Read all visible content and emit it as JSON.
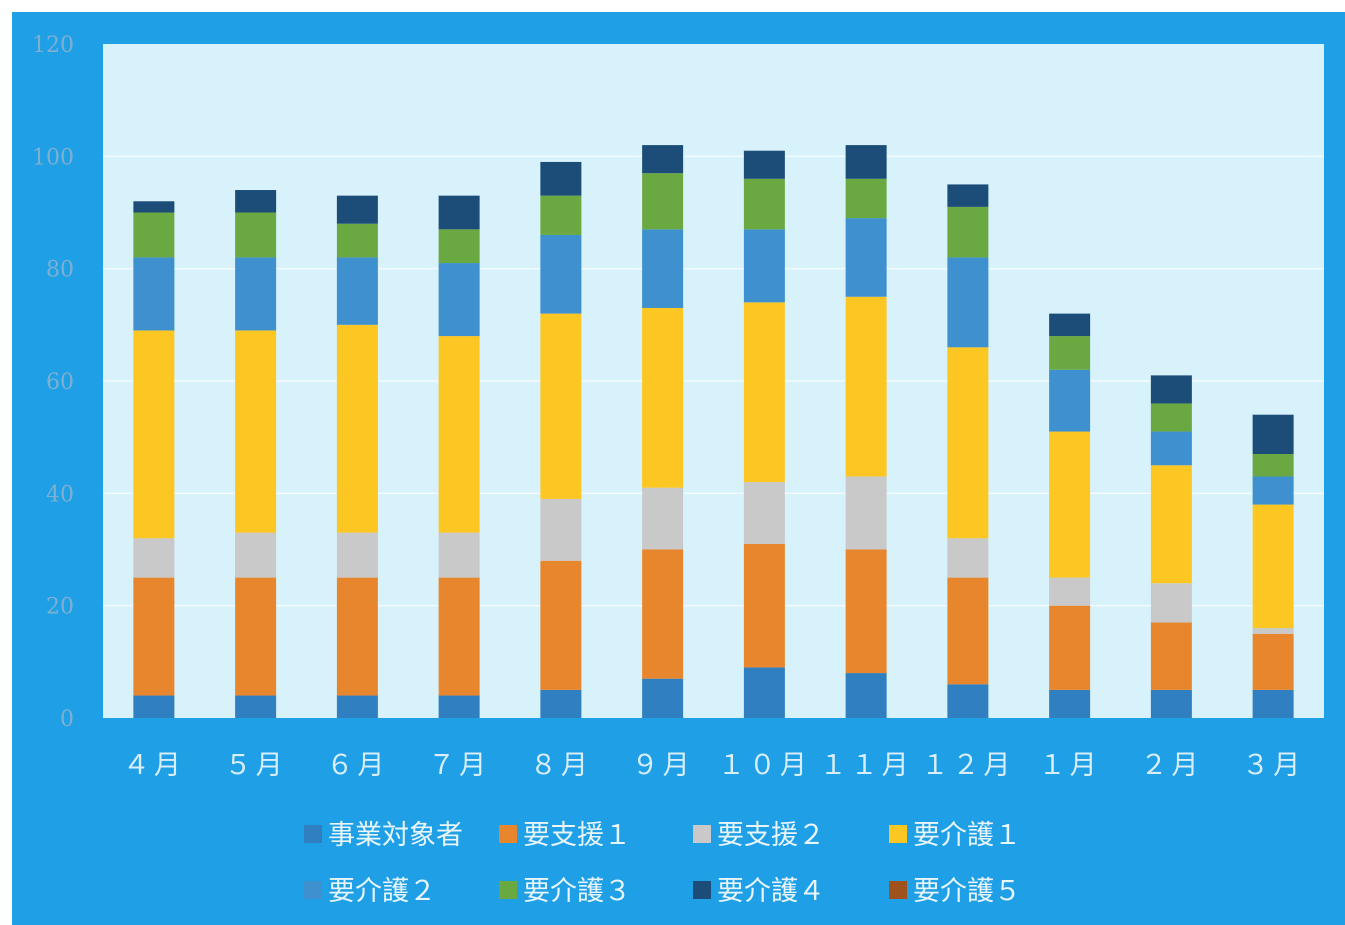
{
  "chart_data": {
    "type": "bar",
    "stacked": true,
    "categories": [
      "４月",
      "５月",
      "６月",
      "７月",
      "８月",
      "９月",
      "１０月",
      "１１月",
      "１２月",
      "１月",
      "２月",
      "３月"
    ],
    "ylim": [
      0,
      120
    ],
    "yticks": [
      0,
      20,
      40,
      60,
      80,
      100,
      120
    ],
    "grid": true,
    "legend_position": "bottom",
    "series": [
      {
        "name": "事業対象者",
        "color": "#2f7fc1",
        "values": [
          4,
          4,
          4,
          4,
          5,
          7,
          9,
          8,
          6,
          5,
          5,
          5
        ]
      },
      {
        "name": "要支援１",
        "color": "#e8862d",
        "values": [
          21,
          21,
          21,
          21,
          23,
          23,
          22,
          22,
          19,
          15,
          12,
          10
        ]
      },
      {
        "name": "要支援２",
        "color": "#c9c9c9",
        "values": [
          7,
          8,
          8,
          8,
          11,
          11,
          11,
          13,
          7,
          5,
          7,
          1
        ]
      },
      {
        "name": "要介護１",
        "color": "#fcc623",
        "values": [
          37,
          36,
          37,
          35,
          33,
          32,
          32,
          32,
          34,
          26,
          21,
          22
        ]
      },
      {
        "name": "要介護２",
        "color": "#3f90cf",
        "values": [
          13,
          13,
          12,
          13,
          14,
          14,
          13,
          14,
          16,
          11,
          6,
          5
        ]
      },
      {
        "name": "要介護３",
        "color": "#6aa842",
        "values": [
          8,
          8,
          6,
          6,
          7,
          10,
          9,
          7,
          9,
          6,
          5,
          4
        ]
      },
      {
        "name": "要介護４",
        "color": "#1b4d78",
        "values": [
          2,
          4,
          5,
          6,
          6,
          5,
          5,
          6,
          4,
          4,
          5,
          7
        ]
      },
      {
        "name": "要介護５",
        "color": "#a0521c",
        "values": [
          0,
          0,
          0,
          0,
          0,
          0,
          0,
          0,
          0,
          0,
          0,
          0
        ]
      }
    ]
  },
  "colors": {
    "frame": "#1e9fe6",
    "plot_background": "#d8f2fb",
    "gridline": "#ffffff"
  }
}
